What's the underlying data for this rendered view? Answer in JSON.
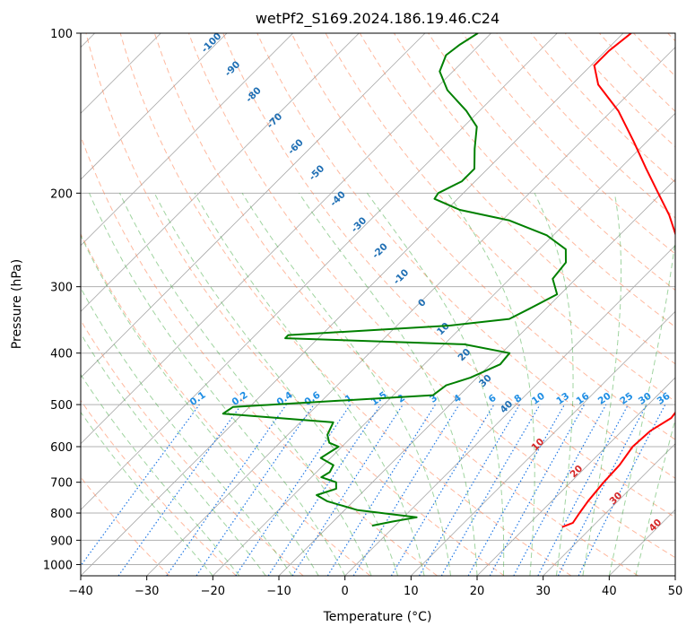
{
  "chart_data": {
    "type": "line",
    "title": "wetPf2_S169.2024.186.19.46.C24",
    "xlabel": "Temperature (°C)",
    "ylabel": "Pressure (hPa)",
    "xlim": [
      -40,
      50
    ],
    "ylim": [
      1050,
      100
    ],
    "y_scale": "log",
    "x_ticks": [
      -40,
      -30,
      -20,
      -10,
      0,
      10,
      20,
      30,
      40,
      50
    ],
    "y_ticks": [
      100,
      200,
      300,
      400,
      500,
      600,
      700,
      800,
      900,
      1000
    ],
    "grid": true,
    "skew": "skew-T log-P",
    "colors": {
      "temperature": "#ff0000",
      "dewpoint": "#008000",
      "dry_adiabat": "#ff7f50",
      "moist_adiabat": "#2ca02c",
      "mixing_ratio": "#1f77e4",
      "isotherm": "#808080",
      "temp_label": "#d62728",
      "dry_label": "#1f6fb4",
      "mixing_label": "#1f8ee4"
    },
    "series": [
      {
        "values": [
          [
            850,
            25.5
          ],
          [
            835,
            26.5
          ],
          [
            800,
            26.0
          ],
          [
            760,
            25.5
          ],
          [
            700,
            25.0
          ],
          [
            650,
            24.8
          ],
          [
            600,
            24.0
          ],
          [
            560,
            24.3
          ],
          [
            530,
            25.5
          ],
          [
            510,
            25.2
          ],
          [
            480,
            23.7
          ],
          [
            450,
            22.0
          ],
          [
            420,
            19.8
          ],
          [
            395,
            17.0
          ],
          [
            375,
            15.3
          ],
          [
            355,
            15.0
          ],
          [
            335,
            11.7
          ],
          [
            300,
            8.5
          ],
          [
            270,
            4.5
          ],
          [
            245,
            -0.5
          ],
          [
            220,
            -5.5
          ],
          [
            200,
            -10.5
          ],
          [
            180,
            -16.0
          ],
          [
            160,
            -22.0
          ],
          [
            140,
            -29.0
          ],
          [
            125,
            -36.0
          ],
          [
            115,
            -39.5
          ],
          [
            108,
            -39.5
          ],
          [
            100,
            -38.8
          ]
        ]
      },
      {
        "values": [
          [
            845,
            -3.5
          ],
          [
            830,
            -1.0
          ],
          [
            815,
            2.0
          ],
          [
            790,
            -8.0
          ],
          [
            760,
            -14.0
          ],
          [
            740,
            -16.5
          ],
          [
            720,
            -14.5
          ],
          [
            700,
            -15.5
          ],
          [
            685,
            -18.5
          ],
          [
            670,
            -18.0
          ],
          [
            650,
            -18.5
          ],
          [
            630,
            -21.5
          ],
          [
            600,
            -20.5
          ],
          [
            590,
            -22.5
          ],
          [
            570,
            -24.0
          ],
          [
            540,
            -25.0
          ],
          [
            520,
            -43.0
          ],
          [
            505,
            -42.5
          ],
          [
            480,
            -14.0
          ],
          [
            460,
            -13.5
          ],
          [
            445,
            -11.0
          ],
          [
            420,
            -8.5
          ],
          [
            400,
            -8.8
          ],
          [
            385,
            -17.0
          ],
          [
            375,
            -45.0
          ],
          [
            370,
            -45.0
          ],
          [
            355,
            -22.0
          ],
          [
            345,
            -14.0
          ],
          [
            330,
            -12.5
          ],
          [
            310,
            -10.5
          ],
          [
            290,
            -13.5
          ],
          [
            270,
            -14.0
          ],
          [
            255,
            -16.0
          ],
          [
            240,
            -21.0
          ],
          [
            225,
            -29.0
          ],
          [
            215,
            -38.0
          ],
          [
            205,
            -43.5
          ],
          [
            200,
            -43.8
          ],
          [
            190,
            -42.0
          ],
          [
            180,
            -42.0
          ],
          [
            165,
            -45.0
          ],
          [
            150,
            -48.0
          ],
          [
            140,
            -52.0
          ],
          [
            128,
            -58.0
          ],
          [
            118,
            -62.0
          ],
          [
            110,
            -63.5
          ],
          [
            105,
            -63.0
          ],
          [
            100,
            -62.0
          ]
        ]
      }
    ],
    "dry_adiabat_labels": [
      "-100",
      "-90",
      "-80",
      "-70",
      "-60",
      "-50",
      "-40",
      "-30",
      "-20",
      "-10",
      "0",
      "10",
      "20",
      "30",
      "40"
    ],
    "mixing_ratio_labels": [
      "0.1",
      "0.2",
      "0.4",
      "0.6",
      "1",
      "1.5",
      "2",
      "3",
      "4",
      "6",
      "8",
      "10",
      "13",
      "16",
      "20",
      "25",
      "30",
      "36"
    ]
  }
}
